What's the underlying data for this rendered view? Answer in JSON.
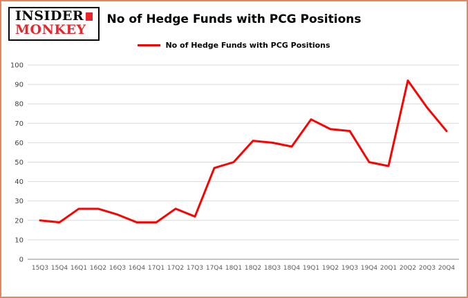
{
  "frame": {
    "border_color": "#e8845c",
    "background": "#ffffff"
  },
  "logo": {
    "line1": "INSIDER",
    "line2": "MONKEY",
    "accent_color": "#e8252a"
  },
  "legend": {
    "label": "No of Hedge Funds with PCG Positions",
    "line_color": "#ff0000"
  },
  "chart_data": {
    "type": "line",
    "title": "No of Hedge Funds with PCG Positions",
    "xlabel": "",
    "ylabel": "",
    "ylim": [
      0,
      100
    ],
    "ytick_interval": 10,
    "grid": "horizontal",
    "legend_position": "top-center",
    "categories": [
      "15Q3",
      "15Q4",
      "16Q1",
      "16Q2",
      "16Q3",
      "16Q4",
      "17Q1",
      "17Q2",
      "17Q3",
      "17Q4",
      "18Q1",
      "18Q2",
      "18Q3",
      "18Q4",
      "19Q1",
      "19Q2",
      "19Q3",
      "19Q4",
      "20Q1",
      "20Q2",
      "20Q3",
      "20Q4"
    ],
    "series": [
      {
        "name": "No of Hedge Funds with PCG Positions",
        "color": "#ff0000",
        "values": [
          20,
          19,
          26,
          26,
          23,
          19,
          19,
          26,
          22,
          47,
          50,
          61,
          60,
          58,
          72,
          67,
          66,
          50,
          48,
          92,
          78,
          66
        ]
      }
    ],
    "colors": {
      "gridline": "#d9d9d9",
      "axis": "#8c8c8c",
      "tick_label": "#595959"
    }
  }
}
